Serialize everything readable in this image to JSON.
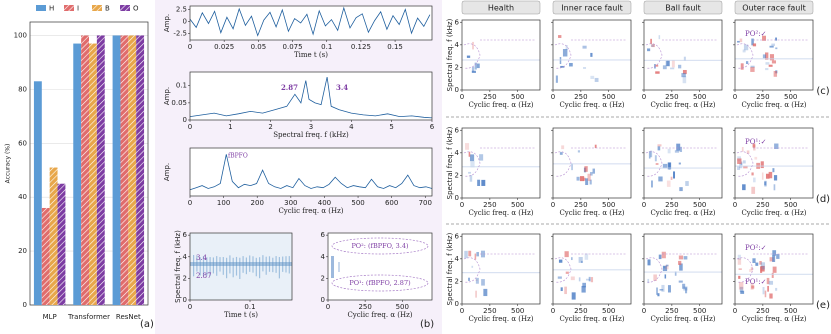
{
  "chart_data": [
    {
      "type": "bar",
      "label": "(a)",
      "ylabel": "Accuracy (%)",
      "categories": [
        "MLP",
        "Transformer",
        "ResNet"
      ],
      "series": [
        {
          "name": "H",
          "color": "#5b9bd5",
          "hatch": false,
          "values": [
            83,
            97,
            100
          ]
        },
        {
          "name": "I",
          "color": "#e06c6c",
          "hatch": true,
          "values": [
            36,
            100,
            100
          ]
        },
        {
          "name": "B",
          "color": "#e8a74a",
          "hatch": true,
          "values": [
            51,
            97,
            100
          ]
        },
        {
          "name": "O",
          "color": "#7d3ca3",
          "hatch": true,
          "values": [
            45,
            100,
            100
          ]
        }
      ],
      "ylim": [
        0,
        105
      ],
      "yticks": [
        0,
        20,
        40,
        60,
        80,
        100
      ],
      "legend": "top"
    },
    {
      "type": "line",
      "xlabel": "Time t (s)",
      "ylabel": "Amp.",
      "color": "#1f5f9e",
      "x": [
        0,
        0.0045,
        0.009,
        0.0135,
        0.018,
        0.0225,
        0.027,
        0.0315,
        0.036,
        0.0405,
        0.045,
        0.0495,
        0.054,
        0.0585,
        0.063,
        0.0675,
        0.072,
        0.0765,
        0.081,
        0.0855,
        0.09,
        0.0945,
        0.099,
        0.1035,
        0.108,
        0.1125,
        0.117,
        0.1215,
        0.126,
        0.1305,
        0.135,
        0.1395,
        0.144,
        0.1485,
        0.153,
        0.1575,
        0.162,
        0.1665,
        0.171,
        0.1755
      ],
      "values": [
        0.5,
        -1.2,
        1.8,
        -0.4,
        2.1,
        -2.3,
        0.9,
        -1.5,
        2.6,
        -0.8,
        1.1,
        -2.9,
        0.3,
        1.9,
        -1.1,
        2.4,
        -2.0,
        0.6,
        -0.3,
        1.5,
        -2.6,
        2.2,
        -0.9,
        0.4,
        -1.8,
        2.8,
        -1.3,
        0.8,
        1.6,
        -2.2,
        0.2,
        2.0,
        -1.6,
        1.2,
        -0.6,
        2.5,
        -2.4,
        0.7,
        -1.0,
        1.4
      ],
      "xlim": [
        0,
        0.177
      ],
      "xticks": [
        0,
        0.025,
        0.05,
        0.075,
        0.1,
        0.125,
        0.15
      ],
      "ylim": [
        -3.8,
        3.2
      ],
      "yticks": [
        -2.5,
        0,
        2.5
      ]
    },
    {
      "type": "line",
      "xlabel": "Spectral freq. f (kHz)",
      "ylabel": "Amp.",
      "color": "#1f5f9e",
      "x": [
        0,
        0.3,
        0.6,
        0.9,
        1.2,
        1.5,
        1.8,
        2.1,
        2.4,
        2.6,
        2.75,
        2.87,
        2.95,
        3.1,
        3.25,
        3.4,
        3.5,
        3.7,
        4.0,
        4.3,
        4.6,
        4.9,
        5.2,
        5.5,
        5.8,
        6.0
      ],
      "values": [
        0.01,
        0.015,
        0.02,
        0.012,
        0.018,
        0.025,
        0.02,
        0.03,
        0.04,
        0.075,
        0.05,
        0.115,
        0.06,
        0.05,
        0.045,
        0.125,
        0.04,
        0.03,
        0.02,
        0.015,
        0.012,
        0.018,
        0.01,
        0.012,
        0.008,
        0.006
      ],
      "xlim": [
        0,
        6
      ],
      "xticks": [
        0,
        1,
        2,
        3,
        4,
        5,
        6
      ],
      "ylim": [
        0,
        0.14
      ],
      "yticks": [
        0,
        0.05,
        0.1
      ],
      "annotations": [
        "2.87",
        "3.4"
      ]
    },
    {
      "type": "line",
      "xlabel": "Cyclic freq. α (Hz)",
      "ylabel": "Amp.",
      "color": "#1f5f9e",
      "x": [
        0,
        18,
        36,
        54,
        72,
        90,
        108,
        126,
        144,
        162,
        180,
        198,
        216,
        234,
        252,
        270,
        288,
        306,
        324,
        342,
        360,
        378,
        396,
        414,
        432,
        450,
        468,
        486,
        504,
        522,
        540,
        558,
        576,
        594,
        612,
        630,
        648,
        666,
        684,
        702,
        720
      ],
      "values": [
        0.15,
        0.2,
        0.25,
        0.18,
        0.22,
        0.3,
        1.0,
        0.35,
        0.2,
        0.28,
        0.25,
        0.3,
        0.62,
        0.3,
        0.22,
        0.18,
        0.25,
        0.2,
        0.42,
        0.25,
        0.18,
        0.22,
        0.2,
        0.28,
        0.45,
        0.3,
        0.2,
        0.25,
        0.22,
        0.2,
        0.4,
        0.22,
        0.18,
        0.25,
        0.2,
        0.3,
        0.5,
        0.25,
        0.2,
        0.22,
        0.18
      ],
      "xlim": [
        0,
        720
      ],
      "xticks": [
        0,
        100,
        200,
        300,
        400,
        500,
        600,
        700
      ],
      "ylim": [
        0,
        1.15
      ],
      "annotations": [
        "fBPFO"
      ]
    },
    {
      "type": "heatmap",
      "xlabel": "Time t (s)",
      "ylabel": "Spectral freq. f (kHz)",
      "xlim": [
        0,
        0.17
      ],
      "xticks": [
        0,
        0.1
      ],
      "ylim": [
        0,
        6.2
      ],
      "yticks": [
        0,
        2,
        4,
        6
      ],
      "annotations": [
        "3.4",
        "2.87"
      ]
    },
    {
      "type": "heatmap",
      "label": "(b)",
      "xlabel": "Cyclic freq. α (Hz)",
      "xlim": [
        0,
        700
      ],
      "xticks": [
        0,
        250,
        500
      ],
      "ylim": [
        0,
        6.2
      ],
      "yticks": [
        0,
        2,
        4,
        6
      ],
      "annotations": [
        "PO²: (fBPFO, 3.4)",
        "PO¹: (fBPFO, 2.87)"
      ]
    },
    {
      "type": "heatmap",
      "columns": [
        "Health",
        "Inner race fault",
        "Ball fault",
        "Outer race fault"
      ],
      "rows": [
        "(c)",
        "(d)",
        "(e)"
      ],
      "xlabel": "Cyclic freq. α (Hz)",
      "ylabel": "Spectral freq. f (kHz)",
      "xlim": [
        0,
        700
      ],
      "xticks": [
        0,
        250,
        500
      ],
      "ylim": [
        0,
        6.2
      ],
      "yticks": [
        0,
        2,
        4,
        6
      ],
      "annotations": [
        [
          "PO²:✓"
        ],
        [
          "PO¹:✓"
        ],
        [
          "PO²:✓",
          "PO¹:✓"
        ]
      ]
    }
  ]
}
